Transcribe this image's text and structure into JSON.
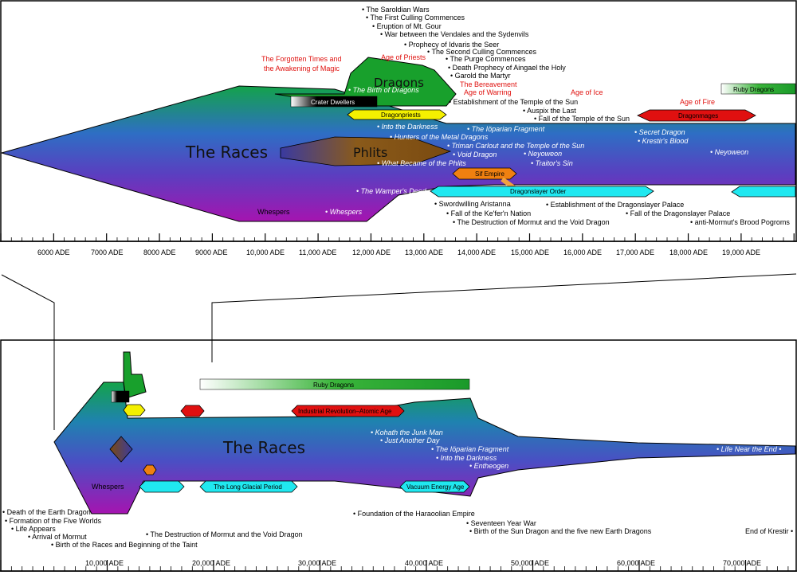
{
  "top_panel": {
    "streams": {
      "races": "The Races",
      "dragons": "Dragons",
      "phlits": "Phlits",
      "whespers": "Whespers"
    },
    "bars": {
      "crater_dwellers": "Crater Dwellers",
      "dragonpriests": "Dragonpriests",
      "sif_empire": "Sif Empire",
      "dragonslayer_order": "Dragonslayer Order",
      "dragonmages": "Dragonmages",
      "ruby_dragons": "Ruby Dragons"
    },
    "ages": {
      "forgotten_1": "The Forgotten Times and",
      "forgotten_2": "the Awakening of Magic",
      "priests": "Age of Priests",
      "bereavement": "The Bereavement",
      "warring": "Age of Warring",
      "ice": "Age of Ice",
      "fire": "Age of Fire"
    },
    "events_above": [
      "• The Saroldian Wars",
      "• The First Culling Commences",
      "• Eruption of Mt. Gour",
      "• War between the Vendales and the Sydenvils",
      "• Prophecy of Idvaris the Seer",
      "• The Second Culling Commences",
      "• The Purge Commences",
      "• Death Prophecy of Aingael the Holy",
      "• Garold the Martyr"
    ],
    "events_mid": [
      "• Establishment of the Temple of the Sun",
      "• Auspix the Last",
      "• Fall of the Temple of the Sun"
    ],
    "stories": [
      "• The Birth of Dragons",
      "• Into the Darkness",
      "• Hunters of the Metal Dragons",
      "• The Iöparian Fragment",
      "• Triman Carlout and the Temple of the Sun",
      "• Void Dragon",
      "• Neyoweon",
      "• What Became of the Phlits",
      "• Traitor's Sin",
      "• Secret Dragon",
      "• Krestir's Blood",
      "• Neyoweon",
      "• The Wamper's Deed",
      "• Whespers"
    ],
    "events_below": [
      "• Swordwilling Aristanna",
      "• Fall of the Ke'fer'n Nation",
      "• The Destruction of Mormut and the Void Dragon",
      "• Establishment of the Dragonslayer Palace",
      "• Fall of the Dragonslayer Palace",
      "• anti-Mormut's Brood Pogroms"
    ],
    "axis_ticks": [
      "6000 ADE",
      "7000 ADE",
      "8000 ADE",
      "9000 ADE",
      "10,000 ADE",
      "11,000 ADE",
      "12,000 ADE",
      "13,000 ADE",
      "14,000 ADE",
      "15,000 ADE",
      "16,000 ADE",
      "17,000 ADE",
      "18,000 ADE",
      "19,000 ADE"
    ]
  },
  "bottom_panel": {
    "streams": {
      "races": "The Races",
      "whespers": "Whespers"
    },
    "bars": {
      "ruby_dragons": "Ruby Dragons",
      "industrial": "Industrial Revolution–Atomic Age",
      "glacial": "The Long Glacial Period",
      "vacuum": "Vacuum Energy Age"
    },
    "stories": [
      "• Kohath the Junk Man",
      "• Just Another Day",
      "• The Iöparian Fragment",
      "• Into the Darkness",
      "• Entheogen",
      "• Life Near the End •"
    ],
    "events_left": [
      "• Death of the Earth Dragon",
      "• Formation of the Five Worlds",
      "• Life Appears",
      "• Arrival of Mormut",
      "• Birth of the Races and Beginning of the Taint",
      "• The Destruction of Mormut and the Void Dragon"
    ],
    "events_right": [
      "• Foundation of the Haraoolian Empire",
      "• Seventeen Year War",
      "• Birth of the Sun Dragon and the five new Earth Dragons",
      "End of Krestir •"
    ],
    "axis_ticks": [
      "10,000 ADE",
      "20,000 ADE",
      "30,000 ADE",
      "40,000 ADE",
      "50,000 ADE",
      "60,000 ADE",
      "70,000 ADE"
    ]
  },
  "colors": {
    "dragons_green": "#1a9a2a",
    "races_blue": "#2e5fc0",
    "races_purple": "#9a16b0",
    "phlits_brown": "#7a4a1a",
    "cyan": "#20e8f0",
    "yellow": "#f4f000",
    "orange": "#f08010",
    "red": "#e01010"
  }
}
